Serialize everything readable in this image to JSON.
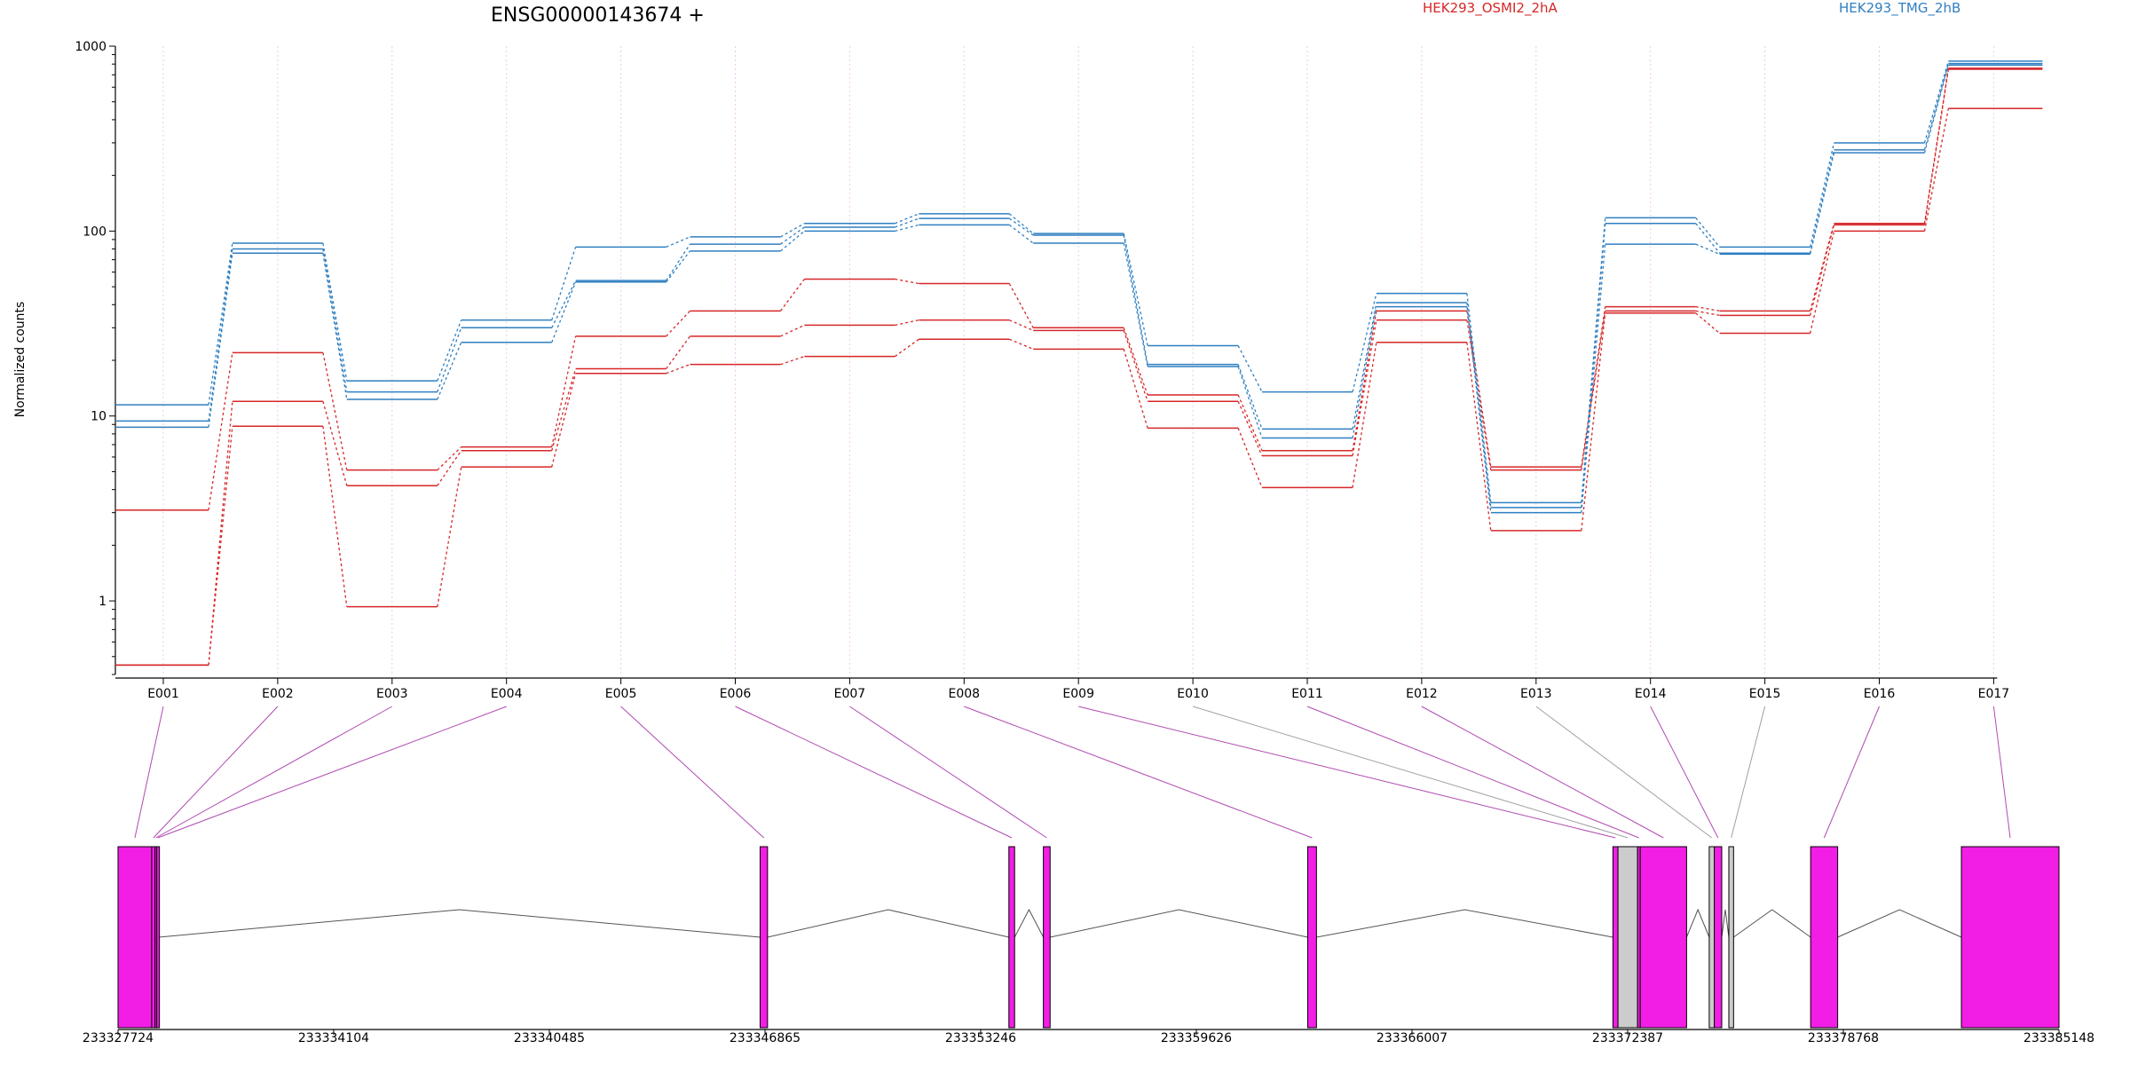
{
  "chart_data": {
    "type": "line",
    "title": "ENSG00000143674 +",
    "ylabel": "Normalized counts",
    "yscale": "log",
    "ylim": [
      0.4,
      1000
    ],
    "y_ticks": [
      1,
      10,
      100,
      1000
    ],
    "y_tick_labels": [
      "1",
      "10",
      "100",
      "1000"
    ],
    "categories": [
      "E001",
      "E002",
      "E003",
      "E004",
      "E005",
      "E006",
      "E007",
      "E008",
      "E009",
      "E010",
      "E011",
      "E012",
      "E013",
      "E014",
      "E015",
      "E016",
      "E017"
    ],
    "groups": [
      {
        "name": "HEK293_OSMI2_2hA",
        "color": "#d62728"
      },
      {
        "name": "HEK293_TMG_2hB",
        "color": "#2f7fc1"
      }
    ],
    "series": [
      {
        "group": 0,
        "values": [
          3.1,
          22,
          5.1,
          6.8,
          27,
          37,
          55,
          52,
          30,
          13,
          6.5,
          37,
          5.3,
          39,
          37,
          110,
          760
        ]
      },
      {
        "group": 0,
        "values": [
          0.45,
          12,
          4.2,
          6.5,
          18,
          27,
          31,
          33,
          29,
          12,
          6.1,
          33,
          5.1,
          37,
          35,
          108,
          750
        ]
      },
      {
        "group": 0,
        "values": [
          0.45,
          8.8,
          0.93,
          5.3,
          17,
          19,
          21,
          26,
          23,
          8.6,
          4.1,
          25,
          2.4,
          36,
          28,
          100,
          460
        ]
      },
      {
        "group": 1,
        "values": [
          11.5,
          86,
          15.5,
          33,
          82,
          93,
          110,
          124,
          97,
          24,
          13.5,
          46,
          3.4,
          118,
          82,
          300,
          830
        ]
      },
      {
        "group": 1,
        "values": [
          9.4,
          80,
          13.5,
          30,
          54,
          85,
          105,
          117,
          95,
          19,
          8.5,
          41,
          3.2,
          110,
          76,
          275,
          805
        ]
      },
      {
        "group": 1,
        "values": [
          8.7,
          76,
          12.3,
          25,
          53,
          78,
          100,
          108,
          86,
          18.5,
          7.6,
          39,
          3.0,
          85,
          75,
          265,
          790
        ]
      }
    ],
    "gene_model": {
      "coord_ticks": [
        233327724,
        233334104,
        233340485,
        233346865,
        233353246,
        233359626,
        233366007,
        233372387,
        233378768,
        233385148
      ],
      "coord_tick_labels": [
        "233327724",
        "233334104",
        "233340485",
        "233346865",
        "233353246",
        "233359626",
        "233366007",
        "233372387",
        "233378768",
        "233385148"
      ],
      "exon_color": "#f21ee5",
      "unused_exon_color": "#cccccc",
      "exons": [
        {
          "start": 233327724,
          "end": 233328720,
          "bin": "E001",
          "color": "pink"
        },
        {
          "start": 233328720,
          "end": 233328820,
          "bin": "E002",
          "color": "pink"
        },
        {
          "start": 233328820,
          "end": 233328870,
          "bin": "E003",
          "color": "pink"
        },
        {
          "start": 233328870,
          "end": 233328930,
          "bin": "E004",
          "color": "pink"
        },
        {
          "start": 233346720,
          "end": 233346940,
          "bin": "E005",
          "color": "pink"
        },
        {
          "start": 233354080,
          "end": 233354250,
          "bin": "E006",
          "color": "pink"
        },
        {
          "start": 233355100,
          "end": 233355300,
          "bin": "E007",
          "color": "pink"
        },
        {
          "start": 233362920,
          "end": 233363180,
          "bin": "E008",
          "color": "pink"
        },
        {
          "start": 233371950,
          "end": 233372100,
          "bin": "E009",
          "color": "pink"
        },
        {
          "start": 233372100,
          "end": 233372680,
          "bin": "E010",
          "color": "gray"
        },
        {
          "start": 233372680,
          "end": 233372760,
          "bin": "E011",
          "color": "pink"
        },
        {
          "start": 233372760,
          "end": 233374130,
          "bin": "E012",
          "color": "pink"
        },
        {
          "start": 233374800,
          "end": 233374950,
          "bin": "E013",
          "color": "gray"
        },
        {
          "start": 233374950,
          "end": 233375170,
          "bin": "E014",
          "color": "pink"
        },
        {
          "start": 233375380,
          "end": 233375520,
          "bin": "E015",
          "color": "gray"
        },
        {
          "start": 233377800,
          "end": 233378600,
          "bin": "E016",
          "color": "pink"
        },
        {
          "start": 233382260,
          "end": 233385148,
          "bin": "E017",
          "color": "pink"
        }
      ],
      "introns": [
        [
          233328930,
          233346720
        ],
        [
          233346940,
          233354080
        ],
        [
          233354250,
          233355100
        ],
        [
          233355300,
          233362920
        ],
        [
          233363180,
          233371950
        ],
        [
          233374130,
          233374800
        ],
        [
          233375170,
          233375380
        ],
        [
          233375520,
          233377800
        ],
        [
          233378600,
          233382260
        ]
      ]
    }
  }
}
